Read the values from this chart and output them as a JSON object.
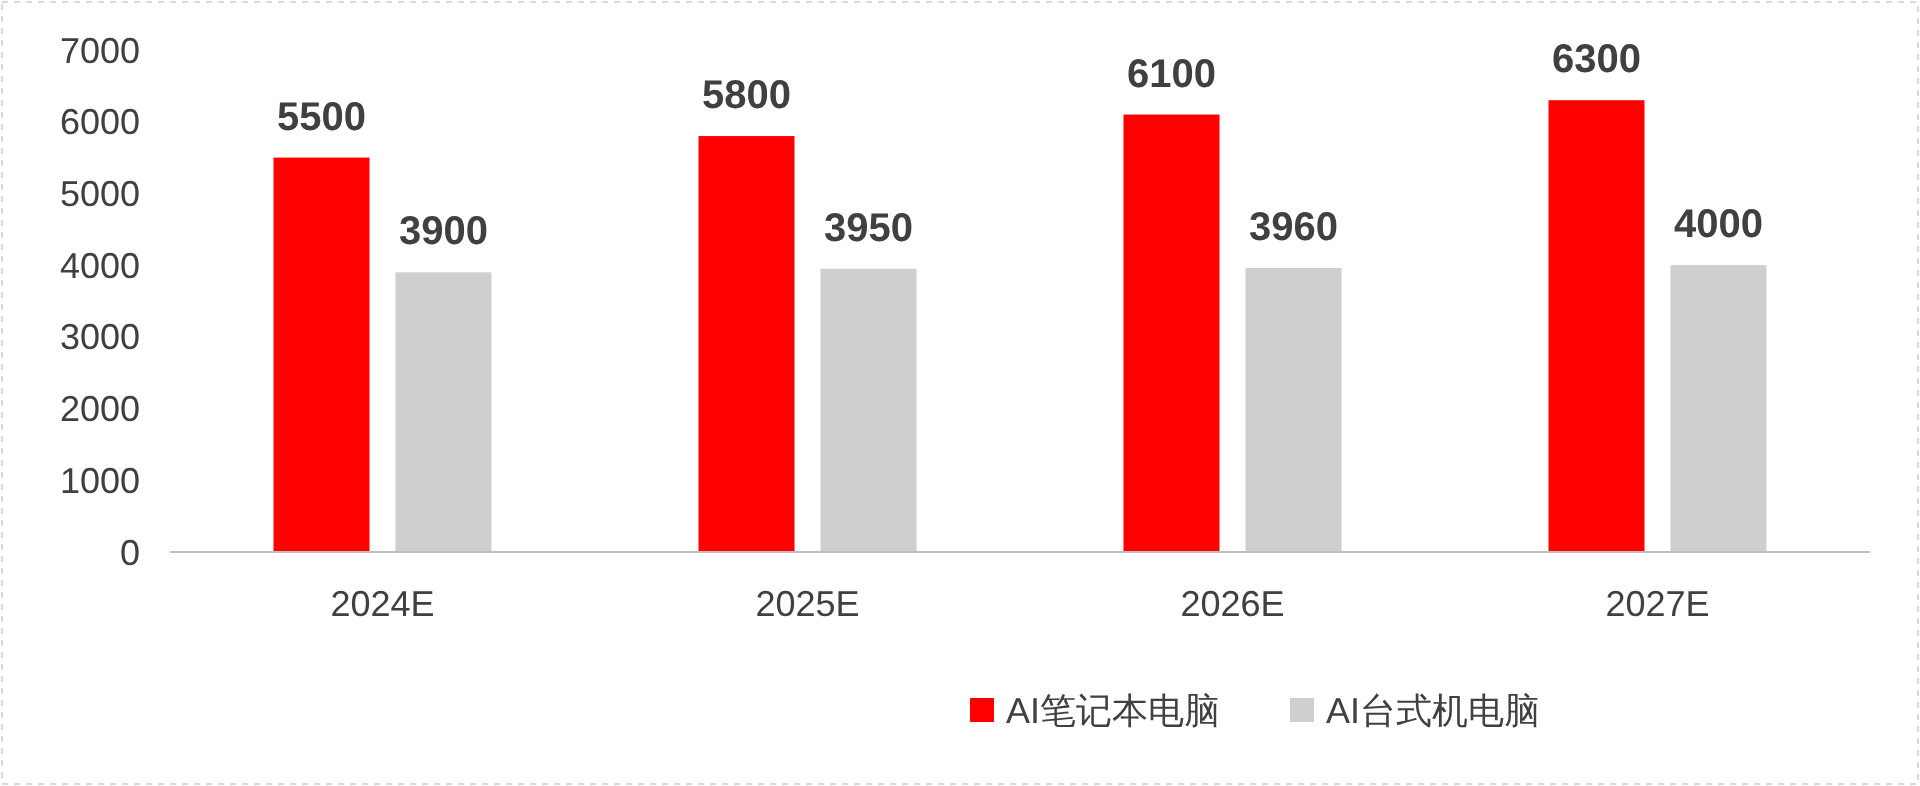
{
  "chart_data": {
    "type": "bar",
    "categories": [
      "2024E",
      "2025E",
      "2026E",
      "2027E"
    ],
    "series": [
      {
        "name": "AI笔记本电脑",
        "color": "#ff0000",
        "values": [
          5500,
          5800,
          6100,
          6300
        ]
      },
      {
        "name": "AI台式机电脑",
        "color": "#d0cece",
        "values": [
          3900,
          3950,
          3960,
          4000
        ]
      }
    ],
    "ylim": [
      0,
      7000
    ],
    "yticks": [
      0,
      1000,
      2000,
      3000,
      4000,
      5000,
      6000,
      7000
    ],
    "grid": false,
    "data_labels": true,
    "legend": "bottom"
  }
}
